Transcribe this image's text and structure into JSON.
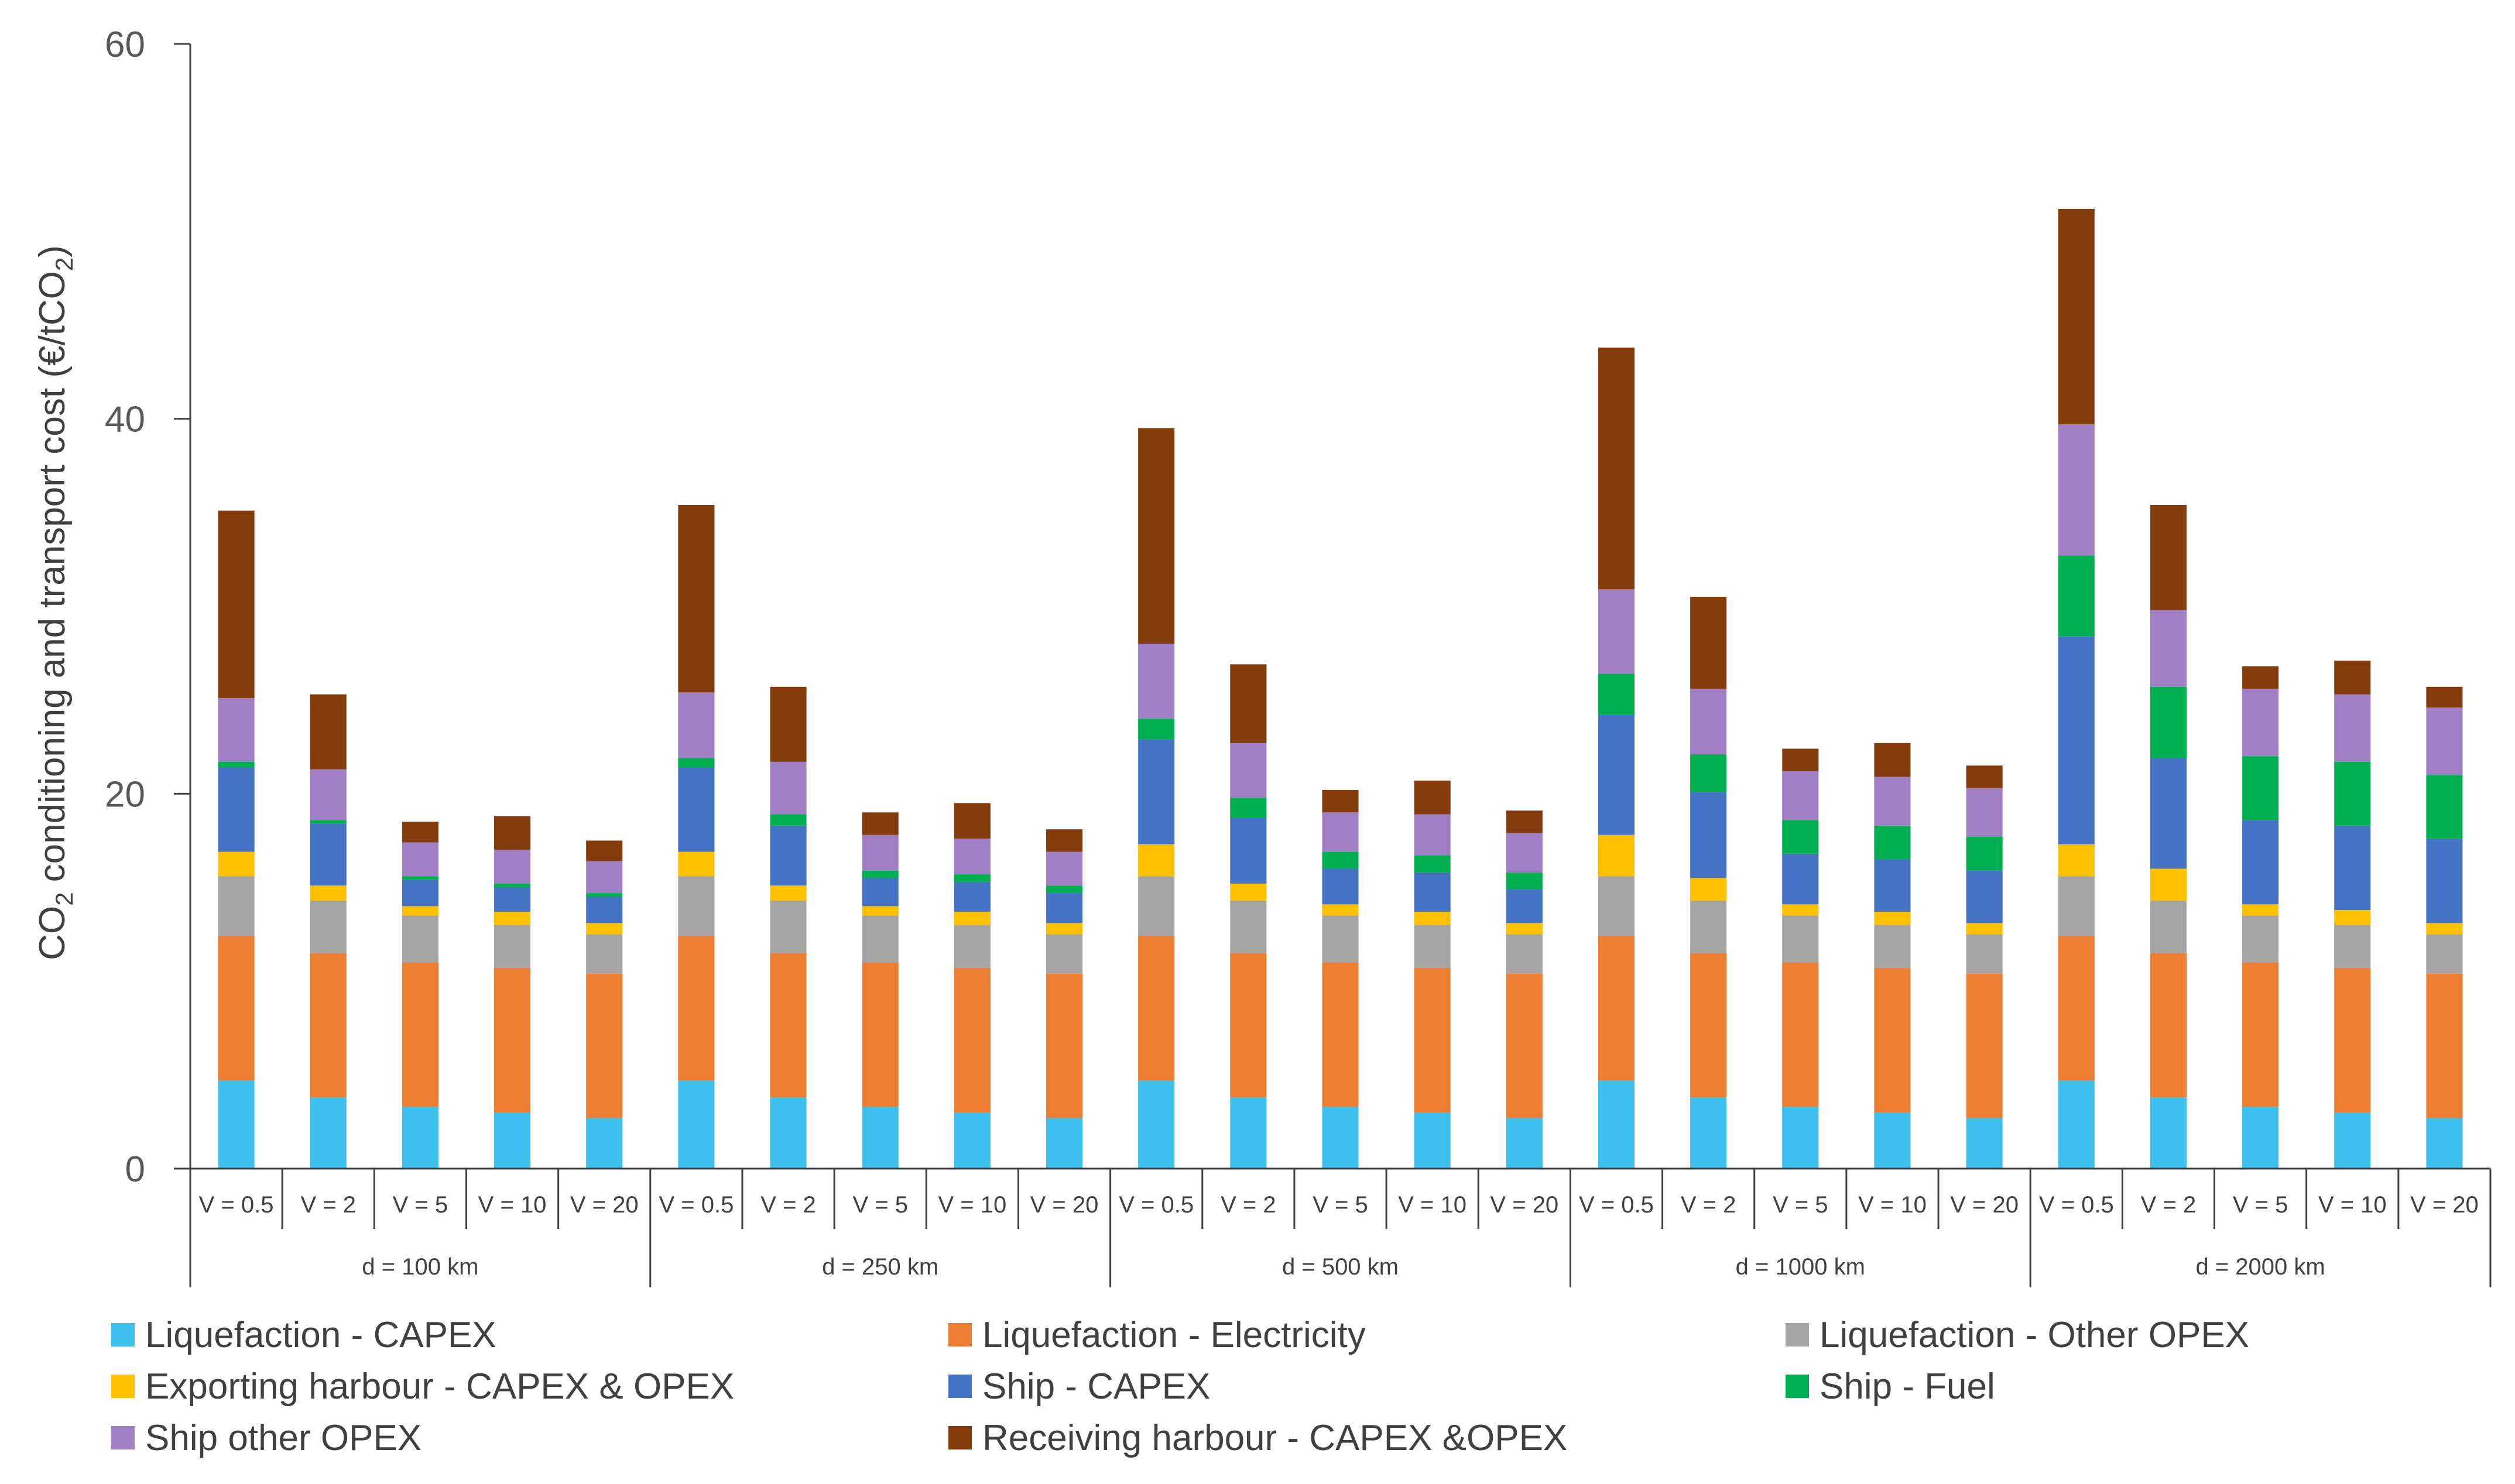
{
  "chart_data": {
    "type": "bar",
    "stacked": true,
    "ylabel": "CO2 conditioning and transport cost (€/tCO2)",
    "ylabel_parts": {
      "a": "CO",
      "b": "2",
      "c": " conditioning and transport cost (€/tCO",
      "d": "2",
      "e": ")"
    },
    "ylim": [
      0,
      60
    ],
    "yticks": [
      "0",
      "20",
      "40",
      "60"
    ],
    "yticks_values": [
      0,
      20,
      40,
      60
    ],
    "groups": [
      "d = 100 km",
      "d = 250 km",
      "d = 500 km",
      "d = 1000 km",
      "d = 2000 km"
    ],
    "subcategories": [
      "V = 0.5",
      "V = 2",
      "V = 5",
      "V = 10",
      "V = 20"
    ],
    "colors": [
      "#3ec0ef",
      "#ed7d31",
      "#a5a5a5",
      "#ffc000",
      "#4472c4",
      "#00b050",
      "#a07fc7",
      "#843c0c"
    ],
    "series": [
      {
        "name": "Liquefaction - CAPEX",
        "values": [
          4.7,
          3.8,
          3.3,
          3.0,
          2.7,
          4.7,
          3.8,
          3.3,
          3.0,
          2.7,
          4.7,
          3.8,
          3.3,
          3.0,
          2.7,
          4.7,
          3.8,
          3.3,
          3.0,
          2.7,
          4.7,
          3.8,
          3.3,
          3.0,
          2.7
        ]
      },
      {
        "name": "Liquefaction - Electricity",
        "values": [
          7.7,
          7.7,
          7.7,
          7.7,
          7.7,
          7.7,
          7.7,
          7.7,
          7.7,
          7.7,
          7.7,
          7.7,
          7.7,
          7.7,
          7.7,
          7.7,
          7.7,
          7.7,
          7.7,
          7.7,
          7.7,
          7.7,
          7.7,
          7.7,
          7.7
        ]
      },
      {
        "name": "Liquefaction - Other OPEX",
        "values": [
          3.2,
          2.8,
          2.5,
          2.3,
          2.1,
          3.2,
          2.8,
          2.5,
          2.3,
          2.1,
          3.2,
          2.8,
          2.5,
          2.3,
          2.1,
          3.2,
          2.8,
          2.5,
          2.3,
          2.1,
          3.2,
          2.8,
          2.5,
          2.3,
          2.1
        ]
      },
      {
        "name": "Exporting harbour - CAPEX & OPEX",
        "values": [
          1.3,
          0.8,
          0.5,
          0.7,
          0.6,
          1.3,
          0.8,
          0.5,
          0.7,
          0.6,
          1.7,
          0.9,
          0.6,
          0.7,
          0.6,
          2.2,
          1.2,
          0.6,
          0.7,
          0.6,
          1.7,
          1.7,
          0.6,
          0.8,
          0.6
        ]
      },
      {
        "name": "Ship - CAPEX",
        "values": [
          4.5,
          3.3,
          1.4,
          1.3,
          1.4,
          4.5,
          3.2,
          1.5,
          1.6,
          1.6,
          5.6,
          3.5,
          1.9,
          2.1,
          1.8,
          6.4,
          4.6,
          2.7,
          2.8,
          2.8,
          11.1,
          5.9,
          4.5,
          4.5,
          4.5
        ]
      },
      {
        "name": "Ship - Fuel",
        "values": [
          0.3,
          0.2,
          0.2,
          0.2,
          0.2,
          0.5,
          0.6,
          0.4,
          0.4,
          0.4,
          1.1,
          1.1,
          0.9,
          0.9,
          0.9,
          2.2,
          2.0,
          1.8,
          1.8,
          1.8,
          4.3,
          3.8,
          3.4,
          3.4,
          3.4
        ]
      },
      {
        "name": "Ship other OPEX",
        "values": [
          3.4,
          2.7,
          1.8,
          1.8,
          1.7,
          3.5,
          2.8,
          1.9,
          1.9,
          1.8,
          4.0,
          2.9,
          2.1,
          2.2,
          2.1,
          4.5,
          3.5,
          2.6,
          2.6,
          2.6,
          7.0,
          4.1,
          3.6,
          3.6,
          3.6
        ]
      },
      {
        "name": "Receiving harbour - CAPEX &OPEX",
        "values": [
          10.0,
          4.0,
          1.1,
          1.8,
          1.1,
          10.0,
          4.0,
          1.2,
          1.9,
          1.2,
          11.5,
          4.2,
          1.2,
          1.8,
          1.2,
          12.9,
          4.9,
          1.2,
          1.8,
          1.2,
          11.5,
          5.6,
          1.2,
          1.8,
          1.1
        ]
      }
    ]
  }
}
